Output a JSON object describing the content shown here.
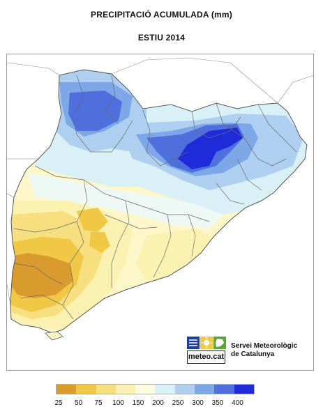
{
  "title": "PRECIPITACIÓ ACUMULADA (mm)",
  "subtitle": "ESTIU 2014",
  "logo": {
    "brand": "meteo.cat",
    "org_line1": "Servei Meteorològic",
    "org_line2": "de Catalunya"
  },
  "legend": {
    "colors": [
      "#d99b2e",
      "#f0c846",
      "#f7df7f",
      "#fbf1b1",
      "#fdfbe0",
      "#d9f1f6",
      "#aecff0",
      "#7da7e6",
      "#4f6fdc",
      "#1f2bd8"
    ],
    "ticks": [
      "25",
      "50",
      "75",
      "100",
      "150",
      "200",
      "250",
      "300",
      "350",
      "400"
    ]
  },
  "colors": {
    "coast_blue_dark": "#3344d6",
    "coast_blue_deep": "#0a10c8",
    "boundary": "#6a6a6a"
  }
}
